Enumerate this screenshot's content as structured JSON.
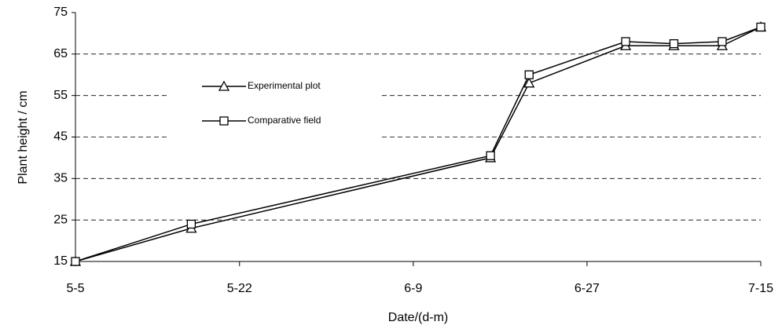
{
  "chart_data": {
    "type": "line",
    "x_label": "Date/(d-m)",
    "y_label": "Plant height / cm",
    "x": [
      "5-5",
      "5-17",
      "6-17",
      "6-21",
      "7-1",
      "7-6",
      "7-11",
      "7-15"
    ],
    "xlim": [
      "5-5",
      "7-15"
    ],
    "xticks": [
      "5-5",
      "5-22",
      "6-9",
      "6-27",
      "7-15"
    ],
    "ylim": [
      15,
      75
    ],
    "yticks": [
      15,
      25,
      35,
      45,
      55,
      65,
      75
    ],
    "grid": true,
    "legend": "upper left",
    "series": [
      {
        "name": "Experimental plot",
        "color": "#000000",
        "marker": "triangle",
        "values": [
          15,
          23,
          40,
          58,
          67,
          67,
          67,
          71.5
        ]
      },
      {
        "name": "Comparative field",
        "color": "#000000",
        "marker": "square",
        "values": [
          15,
          24,
          40.5,
          60,
          68,
          67.5,
          68,
          71.5
        ]
      }
    ]
  }
}
